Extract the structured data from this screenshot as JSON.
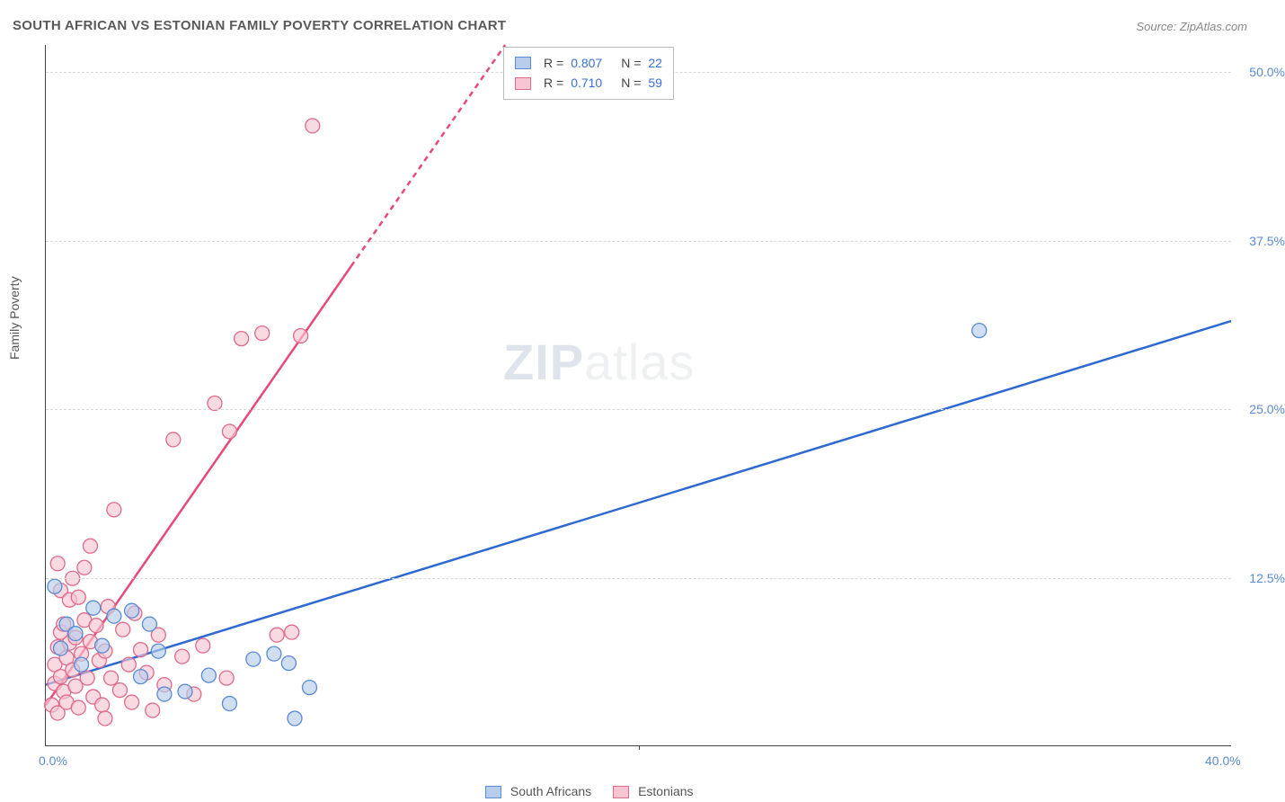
{
  "title": "SOUTH AFRICAN VS ESTONIAN FAMILY POVERTY CORRELATION CHART",
  "source_label": "Source: ZipAtlas.com",
  "ylabel": "Family Poverty",
  "watermark_bold": "ZIP",
  "watermark_rest": "atlas",
  "chart": {
    "type": "scatter",
    "xlim": [
      0,
      40
    ],
    "ylim": [
      0,
      52
    ],
    "ytick_step": 12.5,
    "ytick_labels": [
      "12.5%",
      "25.0%",
      "37.5%",
      "50.0%"
    ],
    "xtick_positions": [
      0,
      20,
      40
    ],
    "xtick_labels": [
      "0.0%",
      "",
      "40.0%"
    ],
    "xmid_tick": 20,
    "grid_color": "#d8d8d8",
    "background_color": "#ffffff",
    "series": [
      {
        "name": "South Africans",
        "label": "South Africans",
        "fill": "#b7cdeb",
        "stroke": "#5b8bd4",
        "line_color": "#2d69d0",
        "line_width": 2.5,
        "marker_radius": 8,
        "R": "0.807",
        "N": "22",
        "trend": {
          "x1": 0,
          "y1": 4.5,
          "x2": 40,
          "y2": 31.5,
          "dash_from_x": 40
        },
        "points": [
          [
            0.3,
            11.8
          ],
          [
            0.5,
            7.2
          ],
          [
            0.7,
            9.0
          ],
          [
            1.0,
            8.3
          ],
          [
            1.2,
            6.0
          ],
          [
            1.6,
            10.2
          ],
          [
            1.9,
            7.4
          ],
          [
            2.3,
            9.6
          ],
          [
            2.9,
            10.0
          ],
          [
            3.2,
            5.1
          ],
          [
            3.5,
            9.0
          ],
          [
            3.8,
            7.0
          ],
          [
            4.0,
            3.8
          ],
          [
            4.7,
            4.0
          ],
          [
            5.5,
            5.2
          ],
          [
            6.2,
            3.1
          ],
          [
            7.0,
            6.4
          ],
          [
            7.7,
            6.8
          ],
          [
            8.2,
            6.1
          ],
          [
            8.4,
            2.0
          ],
          [
            8.9,
            4.3
          ],
          [
            31.5,
            30.8
          ]
        ]
      },
      {
        "name": "Estonians",
        "label": "Estonians",
        "fill": "#f7c6d2",
        "stroke": "#e06a8a",
        "line_color": "#e74a78",
        "line_width": 2.5,
        "marker_radius": 8,
        "R": "0.710",
        "N": "59",
        "trend": {
          "x1": 0,
          "y1": 3.0,
          "x2": 15.5,
          "y2": 52,
          "solid_to_x": 10.3,
          "dash_from_x": 10.3
        },
        "points": [
          [
            0.2,
            3.0
          ],
          [
            0.3,
            4.6
          ],
          [
            0.3,
            6.0
          ],
          [
            0.4,
            2.4
          ],
          [
            0.4,
            7.3
          ],
          [
            0.5,
            8.4
          ],
          [
            0.5,
            5.1
          ],
          [
            0.5,
            11.5
          ],
          [
            0.6,
            4.0
          ],
          [
            0.6,
            9.0
          ],
          [
            0.7,
            3.2
          ],
          [
            0.7,
            6.5
          ],
          [
            0.8,
            7.6
          ],
          [
            0.8,
            10.8
          ],
          [
            0.9,
            5.6
          ],
          [
            0.9,
            12.4
          ],
          [
            1.0,
            4.4
          ],
          [
            1.0,
            8.0
          ],
          [
            1.1,
            2.8
          ],
          [
            1.2,
            6.8
          ],
          [
            1.3,
            9.3
          ],
          [
            1.3,
            13.2
          ],
          [
            1.4,
            5.0
          ],
          [
            1.5,
            7.7
          ],
          [
            1.5,
            14.8
          ],
          [
            1.6,
            3.6
          ],
          [
            1.7,
            8.9
          ],
          [
            1.8,
            6.3
          ],
          [
            1.9,
            3.0
          ],
          [
            2.0,
            7.0
          ],
          [
            2.1,
            10.3
          ],
          [
            2.2,
            5.0
          ],
          [
            2.3,
            17.5
          ],
          [
            2.5,
            4.1
          ],
          [
            2.6,
            8.6
          ],
          [
            2.8,
            6.0
          ],
          [
            2.9,
            3.2
          ],
          [
            3.0,
            9.8
          ],
          [
            3.2,
            7.1
          ],
          [
            3.4,
            5.4
          ],
          [
            3.6,
            2.6
          ],
          [
            3.8,
            8.2
          ],
          [
            4.0,
            4.5
          ],
          [
            4.3,
            22.7
          ],
          [
            4.6,
            6.6
          ],
          [
            5.0,
            3.8
          ],
          [
            5.3,
            7.4
          ],
          [
            5.7,
            25.4
          ],
          [
            6.1,
            5.0
          ],
          [
            6.2,
            23.3
          ],
          [
            6.6,
            30.2
          ],
          [
            7.3,
            30.6
          ],
          [
            7.8,
            8.2
          ],
          [
            8.3,
            8.4
          ],
          [
            8.6,
            30.4
          ],
          [
            9.0,
            46.0
          ],
          [
            2.0,
            2.0
          ],
          [
            1.1,
            11.0
          ],
          [
            0.4,
            13.5
          ]
        ]
      }
    ]
  },
  "legend_bottom": [
    {
      "label": "South Africans",
      "fill": "#b7cdeb",
      "stroke": "#5b8bd4"
    },
    {
      "label": "Estonians",
      "fill": "#f7c6d2",
      "stroke": "#e06a8a"
    }
  ]
}
